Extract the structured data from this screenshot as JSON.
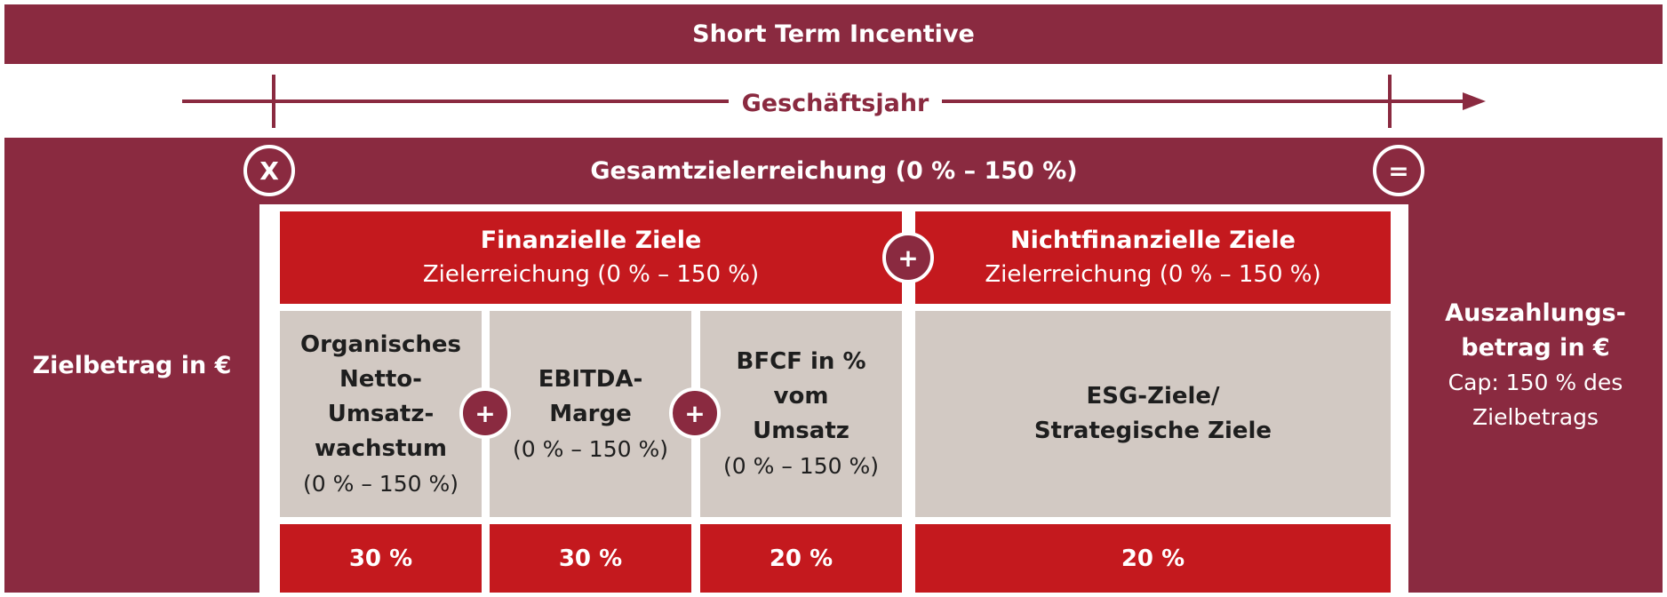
{
  "title": "Short Term Incentive",
  "timeline": {
    "label": "Geschäftsjahr"
  },
  "left": {
    "label": "Zielbetrag in €"
  },
  "overall": {
    "label": "Gesamtzielerreichung (0 % – 150 %)",
    "multiply_symbol": "X",
    "equals_symbol": "="
  },
  "categories": [
    {
      "title": "Finanzielle Ziele",
      "subtitle": "Zielerreichung (0 % – 150 %)"
    },
    {
      "title": "Nichtfinanzielle Ziele",
      "subtitle": "Zielerreichung (0 % – 150 %)"
    }
  ],
  "plus_symbol": "+",
  "goals": [
    {
      "lines": [
        "Organisches",
        "Netto-",
        "Umsatz-",
        "wachstum"
      ],
      "range": "(0 % – 150 %)",
      "weight": "30 %"
    },
    {
      "lines": [
        "EBITDA-",
        "Marge"
      ],
      "range": "(0 % – 150 %)",
      "weight": "30 %"
    },
    {
      "lines": [
        "BFCF in %",
        "vom",
        "Umsatz"
      ],
      "range": "(0 % – 150 %)",
      "weight": "20 %"
    },
    {
      "lines": [
        "ESG-Ziele/",
        "Strategische Ziele"
      ],
      "range": "",
      "weight": "20 %"
    }
  ],
  "right": {
    "lines": [
      "Auszahlungs-",
      "betrag in €"
    ],
    "cap_lines": [
      "Cap: 150 % des",
      "Zielbetrags"
    ]
  },
  "colors": {
    "maroon": "#8a2a40",
    "red": "#c4191e",
    "grey": "#d2c9c3"
  }
}
